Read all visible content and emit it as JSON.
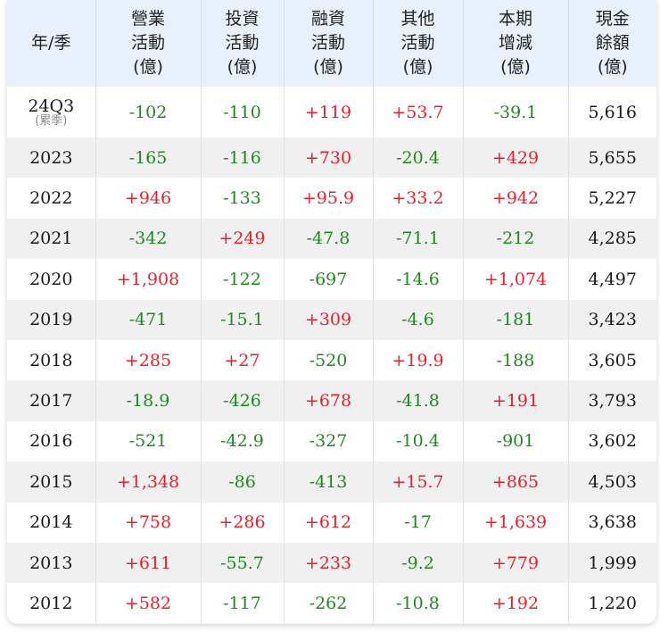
{
  "table": {
    "headers": [
      {
        "lines": [
          "年/季"
        ]
      },
      {
        "lines": [
          "營業",
          "活動",
          "(億)"
        ]
      },
      {
        "lines": [
          "投資",
          "活動",
          "(億)"
        ]
      },
      {
        "lines": [
          "融資",
          "活動",
          "(億)"
        ]
      },
      {
        "lines": [
          "其他",
          "活動",
          "(億)"
        ]
      },
      {
        "lines": [
          "本期",
          "增減",
          "(億)"
        ]
      },
      {
        "lines": [
          "現金",
          "餘額",
          "(億)"
        ]
      }
    ],
    "first_row_note": "(累季)",
    "rows": [
      {
        "period": "24Q3",
        "operating": "-102",
        "investing": "-110",
        "financing": "+119",
        "other": "+53.7",
        "change": "-39.1",
        "cash": "5,616"
      },
      {
        "period": "2023",
        "operating": "-165",
        "investing": "-116",
        "financing": "+730",
        "other": "-20.4",
        "change": "+429",
        "cash": "5,655"
      },
      {
        "period": "2022",
        "operating": "+946",
        "investing": "-133",
        "financing": "+95.9",
        "other": "+33.2",
        "change": "+942",
        "cash": "5,227"
      },
      {
        "period": "2021",
        "operating": "-342",
        "investing": "+249",
        "financing": "-47.8",
        "other": "-71.1",
        "change": "-212",
        "cash": "4,285"
      },
      {
        "period": "2020",
        "operating": "+1,908",
        "investing": "-122",
        "financing": "-697",
        "other": "-14.6",
        "change": "+1,074",
        "cash": "4,497"
      },
      {
        "period": "2019",
        "operating": "-471",
        "investing": "-15.1",
        "financing": "+309",
        "other": "-4.6",
        "change": "-181",
        "cash": "3,423"
      },
      {
        "period": "2018",
        "operating": "+285",
        "investing": "+27",
        "financing": "-520",
        "other": "+19.9",
        "change": "-188",
        "cash": "3,605"
      },
      {
        "period": "2017",
        "operating": "-18.9",
        "investing": "-426",
        "financing": "+678",
        "other": "-41.8",
        "change": "+191",
        "cash": "3,793"
      },
      {
        "period": "2016",
        "operating": "-521",
        "investing": "-42.9",
        "financing": "-327",
        "other": "-10.4",
        "change": "-901",
        "cash": "3,602"
      },
      {
        "period": "2015",
        "operating": "+1,348",
        "investing": "-86",
        "financing": "-413",
        "other": "+15.7",
        "change": "+865",
        "cash": "4,503"
      },
      {
        "period": "2014",
        "operating": "+758",
        "investing": "+286",
        "financing": "+612",
        "other": "-17",
        "change": "+1,639",
        "cash": "3,638"
      },
      {
        "period": "2013",
        "operating": "+611",
        "investing": "-55.7",
        "financing": "+233",
        "other": "-9.2",
        "change": "+779",
        "cash": "1,999"
      },
      {
        "period": "2012",
        "operating": "+582",
        "investing": "-117",
        "financing": "-262",
        "other": "-10.8",
        "change": "+192",
        "cash": "1,220"
      }
    ]
  },
  "colors": {
    "positive": "#e8202a",
    "negative": "#1e8a1e",
    "header_bg": "#e8f1fb",
    "stripe_bg": "#f0f0f0"
  }
}
